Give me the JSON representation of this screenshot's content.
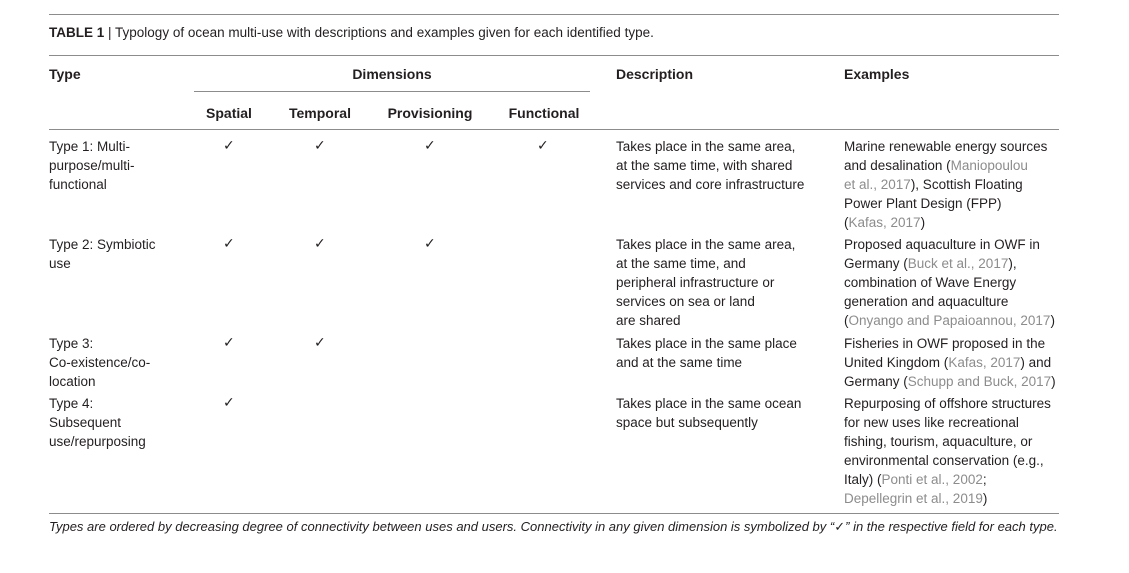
{
  "caption": {
    "label": "TABLE 1",
    "separator": " | ",
    "text": "Typology of ocean multi-use with descriptions and examples given for each identified type."
  },
  "headers": {
    "type": "Type",
    "dimensions": "Dimensions",
    "description": "Description",
    "examples": "Examples",
    "spatial": "Spatial",
    "temporal": "Temporal",
    "provisioning": "Provisioning",
    "functional": "Functional"
  },
  "check_symbol": "✓",
  "rows": [
    {
      "type_lines": [
        "Type 1: Multi-",
        "purpose/multi-",
        "functional"
      ],
      "spatial": true,
      "temporal": true,
      "provisioning": true,
      "functional": true,
      "description_lines": [
        "Takes place in the same area,",
        "at the same time, with shared",
        "services and core infrastructure"
      ],
      "examples_lines": [
        [
          {
            "t": "Marine renewable energy sources"
          }
        ],
        [
          {
            "t": "and desalination ("
          },
          {
            "t": "Maniopoulou",
            "ref": true
          }
        ],
        [
          {
            "t": "et al., 2017",
            "ref": true
          },
          {
            "t": "), Scottish Floating"
          }
        ],
        [
          {
            "t": "Power Plant Design (FPP)"
          }
        ],
        [
          {
            "t": "("
          },
          {
            "t": "Kafas, 2017",
            "ref": true
          },
          {
            "t": ")"
          }
        ]
      ]
    },
    {
      "type_lines": [
        "Type 2: Symbiotic",
        "use"
      ],
      "spatial": true,
      "temporal": true,
      "provisioning": true,
      "functional": false,
      "description_lines": [
        "Takes place in the same area,",
        "at the same time, and",
        "peripheral infrastructure or",
        "services on sea or land",
        "are shared"
      ],
      "examples_lines": [
        [
          {
            "t": "Proposed aquaculture in OWF in"
          }
        ],
        [
          {
            "t": "Germany ("
          },
          {
            "t": "Buck et al., 2017",
            "ref": true
          },
          {
            "t": "),"
          }
        ],
        [
          {
            "t": "combination of Wave Energy"
          }
        ],
        [
          {
            "t": "generation and aquaculture"
          }
        ],
        [
          {
            "t": "("
          },
          {
            "t": "Onyango and Papaioannou, 2017",
            "ref": true
          },
          {
            "t": ")"
          }
        ]
      ]
    },
    {
      "type_lines": [
        "Type 3:",
        "Co-existence/co-",
        "location"
      ],
      "spatial": true,
      "temporal": true,
      "provisioning": false,
      "functional": false,
      "description_lines": [
        "Takes place in the same place",
        "and at the same time"
      ],
      "examples_lines": [
        [
          {
            "t": "Fisheries in OWF proposed in the"
          }
        ],
        [
          {
            "t": "United Kingdom ("
          },
          {
            "t": "Kafas, 2017",
            "ref": true
          },
          {
            "t": ") and"
          }
        ],
        [
          {
            "t": "Germany ("
          },
          {
            "t": "Schupp and Buck, 2017",
            "ref": true
          },
          {
            "t": ")"
          }
        ]
      ]
    },
    {
      "type_lines": [
        "Type 4:",
        "Subsequent",
        "use/repurposing"
      ],
      "spatial": true,
      "temporal": false,
      "provisioning": false,
      "functional": false,
      "description_lines": [
        "Takes place in the same ocean",
        "space but subsequently"
      ],
      "examples_lines": [
        [
          {
            "t": "Repurposing of offshore structures"
          }
        ],
        [
          {
            "t": "for new uses like recreational"
          }
        ],
        [
          {
            "t": "fishing, tourism, aquaculture, or"
          }
        ],
        [
          {
            "t": "environmental conservation (e.g.,"
          }
        ],
        [
          {
            "t": "Italy) ("
          },
          {
            "t": "Ponti et al., 2002",
            "ref": true
          },
          {
            "t": ";"
          }
        ],
        [
          {
            "t": "Depellegrin et al., 2019",
            "ref": true
          },
          {
            "t": ")"
          }
        ]
      ]
    }
  ],
  "footnote": "Types are ordered by decreasing degree of connectivity between uses and users. Connectivity in any given dimension is symbolized by “✓” in the respective field for each type."
}
